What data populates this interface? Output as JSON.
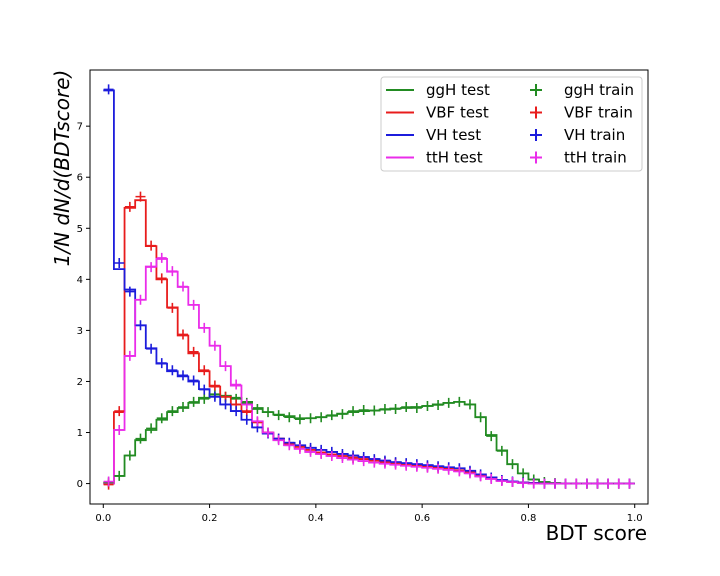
{
  "chart_data": {
    "type": "line",
    "xlabel": "BDT score",
    "ylabel": "1/N dN/d(BDTscore)",
    "xlim": [
      -0.025,
      1.025
    ],
    "ylim": [
      -0.4,
      8.1
    ],
    "xticks": [
      "0.0",
      "0.2",
      "0.4",
      "0.6",
      "0.8",
      "1.0"
    ],
    "yticks": [
      "0",
      "1",
      "2",
      "3",
      "4",
      "5",
      "6",
      "7"
    ],
    "grid": false,
    "legend_position": "top-right",
    "bin_edges": [
      0.0,
      0.02,
      0.04,
      0.06,
      0.08,
      0.1,
      0.12,
      0.14,
      0.16,
      0.18,
      0.2,
      0.22,
      0.24,
      0.26,
      0.28,
      0.3,
      0.32,
      0.34,
      0.36,
      0.38,
      0.4,
      0.42,
      0.44,
      0.46,
      0.48,
      0.5,
      0.52,
      0.54,
      0.56,
      0.58,
      0.6,
      0.62,
      0.64,
      0.66,
      0.68,
      0.7,
      0.72,
      0.74,
      0.76,
      0.78,
      0.8,
      0.82,
      0.84,
      0.86,
      0.88,
      0.9,
      0.92,
      0.94,
      0.96,
      0.98,
      1.0
    ],
    "series": [
      {
        "name": "ggH test",
        "kind": "test",
        "color": "#228B22",
        "values": [
          0.02,
          0.15,
          0.55,
          0.85,
          1.05,
          1.25,
          1.4,
          1.48,
          1.58,
          1.68,
          1.75,
          1.72,
          1.68,
          1.6,
          1.48,
          1.4,
          1.35,
          1.32,
          1.28,
          1.28,
          1.3,
          1.33,
          1.37,
          1.4,
          1.42,
          1.43,
          1.45,
          1.47,
          1.48,
          1.5,
          1.52,
          1.55,
          1.58,
          1.6,
          1.55,
          1.3,
          0.95,
          0.65,
          0.38,
          0.2,
          0.08,
          0.03,
          0.01,
          0.0,
          0.0,
          0.0,
          0.0,
          0.0,
          0.0,
          0.0
        ]
      },
      {
        "name": "VBF test",
        "kind": "test",
        "color": "#e81c1c",
        "values": [
          0.0,
          1.4,
          5.4,
          5.55,
          4.65,
          4.0,
          3.45,
          2.9,
          2.55,
          2.2,
          1.9,
          1.7,
          1.55,
          1.4,
          1.2,
          1.0,
          0.88,
          0.78,
          0.72,
          0.66,
          0.61,
          0.57,
          0.54,
          0.51,
          0.48,
          0.45,
          0.42,
          0.4,
          0.37,
          0.35,
          0.33,
          0.31,
          0.29,
          0.26,
          0.22,
          0.15,
          0.1,
          0.06,
          0.03,
          0.02,
          0.01,
          0.0,
          0.0,
          0.0,
          0.0,
          0.0,
          0.0,
          0.0,
          0.0,
          0.0
        ]
      },
      {
        "name": "VH test",
        "kind": "test",
        "color": "#1c1cdc",
        "values": [
          7.7,
          4.2,
          3.8,
          3.1,
          2.65,
          2.35,
          2.2,
          2.1,
          2.0,
          1.85,
          1.7,
          1.55,
          1.42,
          1.25,
          1.1,
          0.98,
          0.88,
          0.8,
          0.75,
          0.7,
          0.66,
          0.62,
          0.58,
          0.55,
          0.52,
          0.48,
          0.45,
          0.42,
          0.4,
          0.38,
          0.36,
          0.34,
          0.32,
          0.3,
          0.25,
          0.18,
          0.12,
          0.07,
          0.04,
          0.02,
          0.01,
          0.0,
          0.0,
          0.0,
          0.0,
          0.0,
          0.0,
          0.0,
          0.0,
          0.0
        ]
      },
      {
        "name": "ttH test",
        "kind": "test",
        "color": "#ea2cea",
        "values": [
          0.0,
          1.05,
          2.5,
          3.6,
          4.25,
          4.4,
          4.15,
          3.85,
          3.5,
          3.05,
          2.7,
          2.3,
          1.92,
          1.55,
          1.22,
          1.0,
          0.85,
          0.75,
          0.68,
          0.62,
          0.58,
          0.54,
          0.5,
          0.47,
          0.44,
          0.41,
          0.39,
          0.37,
          0.35,
          0.33,
          0.31,
          0.29,
          0.27,
          0.24,
          0.2,
          0.14,
          0.09,
          0.05,
          0.03,
          0.01,
          0.0,
          0.0,
          0.0,
          0.0,
          0.0,
          0.0,
          0.0,
          0.0,
          0.0,
          0.0
        ]
      },
      {
        "name": "ggH train",
        "kind": "train",
        "color": "#228B22",
        "values": [
          0.02,
          0.15,
          0.55,
          0.88,
          1.08,
          1.28,
          1.42,
          1.5,
          1.6,
          1.66,
          1.74,
          1.7,
          1.66,
          1.58,
          1.46,
          1.4,
          1.34,
          1.3,
          1.26,
          1.28,
          1.3,
          1.34,
          1.36,
          1.42,
          1.44,
          1.43,
          1.46,
          1.46,
          1.5,
          1.48,
          1.52,
          1.54,
          1.58,
          1.6,
          1.55,
          1.3,
          0.93,
          0.64,
          0.38,
          0.2,
          0.08,
          0.03,
          0.01,
          0.0,
          0.0,
          0.0,
          0.0,
          0.0,
          0.0,
          0.0
        ]
      },
      {
        "name": "VBF train",
        "kind": "train",
        "color": "#e81c1c",
        "values": [
          -0.02,
          1.42,
          5.42,
          5.62,
          4.66,
          4.02,
          3.44,
          2.92,
          2.58,
          2.22,
          1.92,
          1.7,
          1.55,
          1.42,
          1.2,
          1.0,
          0.88,
          0.78,
          0.72,
          0.66,
          0.6,
          0.57,
          0.54,
          0.5,
          0.48,
          0.45,
          0.42,
          0.4,
          0.37,
          0.35,
          0.33,
          0.31,
          0.29,
          0.26,
          0.22,
          0.15,
          0.1,
          0.06,
          0.03,
          0.02,
          0.01,
          0.0,
          0.0,
          0.0,
          0.0,
          0.0,
          0.0,
          0.0,
          0.0,
          0.0
        ]
      },
      {
        "name": "VH train",
        "kind": "train",
        "color": "#1c1cdc",
        "values": [
          7.72,
          4.32,
          3.76,
          3.1,
          2.64,
          2.36,
          2.22,
          2.12,
          2.02,
          1.84,
          1.7,
          1.55,
          1.42,
          1.25,
          1.1,
          0.98,
          0.88,
          0.8,
          0.75,
          0.7,
          0.66,
          0.62,
          0.58,
          0.55,
          0.52,
          0.48,
          0.45,
          0.42,
          0.4,
          0.38,
          0.36,
          0.34,
          0.32,
          0.3,
          0.25,
          0.18,
          0.12,
          0.07,
          0.04,
          0.02,
          0.01,
          0.0,
          0.0,
          0.0,
          0.0,
          0.0,
          0.0,
          0.0,
          0.0,
          0.0
        ]
      },
      {
        "name": "ttH train",
        "kind": "train",
        "color": "#ea2cea",
        "values": [
          0.04,
          1.05,
          2.5,
          3.6,
          4.24,
          4.42,
          4.16,
          3.86,
          3.5,
          3.05,
          2.7,
          2.3,
          1.94,
          1.55,
          1.22,
          1.0,
          0.85,
          0.75,
          0.68,
          0.62,
          0.58,
          0.54,
          0.5,
          0.47,
          0.44,
          0.41,
          0.39,
          0.37,
          0.35,
          0.33,
          0.31,
          0.29,
          0.27,
          0.24,
          0.2,
          0.14,
          0.09,
          0.05,
          0.03,
          0.01,
          0.0,
          0.0,
          0.0,
          0.0,
          0.0,
          0.0,
          0.0,
          0.0,
          0.0,
          0.0
        ]
      }
    ]
  }
}
